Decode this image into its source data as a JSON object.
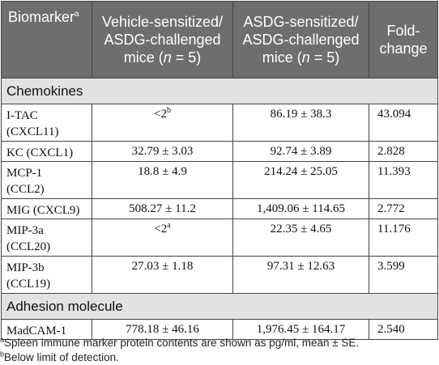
{
  "header": {
    "col0": "Biomarker",
    "col0_sup": "a",
    "col1": "Vehicle-sensitized/ ASDG-challenged mice (n = 5)",
    "col1_line1": "Vehicle-sensitized/",
    "col1_line2": "ASDG-challenged",
    "col1_line3_pre": "mice (",
    "col1_line3_n": "n",
    "col1_line3_post": " = 5)",
    "col2_line1": "ASDG-sensitized/",
    "col2_line2": "ASDG-challenged",
    "col2_line3_pre": "mice (",
    "col2_line3_n": "n",
    "col2_line3_post": " = 5)",
    "col3_line1": "Fold-",
    "col3_line2": "change"
  },
  "sections": [
    {
      "title": "Chemokines",
      "rows": [
        {
          "name_line1": "I-TAC",
          "name_line2": "(CXCL11)",
          "vehicle": "<2",
          "vehicle_sup": "b",
          "asdg": "86.19 ± 38.3",
          "fold": "43.094"
        },
        {
          "name_line1": "KC (CXCL1)",
          "name_line2": "",
          "vehicle": "32.79 ± 3.03",
          "vehicle_sup": "",
          "asdg": "92.74 ± 3.89",
          "fold": "2.828"
        },
        {
          "name_line1": "MCP-1",
          "name_line2": "(CCL2)",
          "vehicle": "18.8 ± 4.9",
          "vehicle_sup": "",
          "asdg": "214.24 ± 25.05",
          "fold": "11.393"
        },
        {
          "name_line1": "MIG (CXCL9)",
          "name_line2": "",
          "vehicle": "508.27 ± 11.2",
          "vehicle_sup": "",
          "asdg": "1,409.06 ± 114.65",
          "fold": "2.772"
        },
        {
          "name_line1": "MIP-3a",
          "name_line2": "(CCL20)",
          "vehicle": "<2",
          "vehicle_sup": "a",
          "asdg": "22.35 ± 4.65",
          "fold": "11.176"
        },
        {
          "name_line1": "MIP-3b",
          "name_line2": "(CCL19)",
          "vehicle": "27.03 ± 1.18",
          "vehicle_sup": "",
          "asdg": "97.31 ± 12.63",
          "fold": "3.599"
        }
      ]
    },
    {
      "title": "Adhesion molecule",
      "rows": [
        {
          "name_line1": "MadCAM-1",
          "name_line2": "",
          "vehicle": "778.18 ± 46.16",
          "vehicle_sup": "",
          "asdg": "1,976.45 ± 164.17",
          "fold": "2.540"
        }
      ]
    }
  ],
  "footnotes": [
    {
      "mark": "a",
      "text": "Spleen immune marker protein contents are shown as pg/ml, mean ± SE."
    },
    {
      "mark": "b",
      "text": "Below limit of detection."
    }
  ]
}
